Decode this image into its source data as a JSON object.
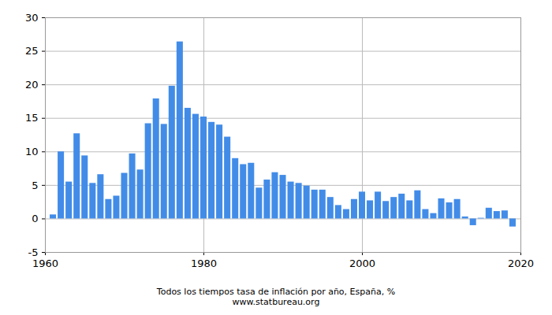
{
  "chart_data": {
    "type": "bar",
    "title": "Todos los tiempos tasa de inflación por año, España, %",
    "subtitle": "www.statbureau.org",
    "x": [
      1961,
      1962,
      1963,
      1964,
      1965,
      1966,
      1967,
      1968,
      1969,
      1970,
      1971,
      1972,
      1973,
      1974,
      1975,
      1976,
      1977,
      1978,
      1979,
      1980,
      1981,
      1982,
      1983,
      1984,
      1985,
      1986,
      1987,
      1988,
      1989,
      1990,
      1991,
      1992,
      1993,
      1994,
      1995,
      1996,
      1997,
      1998,
      1999,
      2000,
      2001,
      2002,
      2003,
      2004,
      2005,
      2006,
      2007,
      2008,
      2009,
      2010,
      2011,
      2012,
      2013,
      2014,
      2015,
      2016,
      2017,
      2018,
      2019
    ],
    "values": [
      0.6,
      10.0,
      5.5,
      12.7,
      9.4,
      5.3,
      6.6,
      2.9,
      3.4,
      6.8,
      9.7,
      7.3,
      14.2,
      17.9,
      14.1,
      19.8,
      26.4,
      16.5,
      15.6,
      15.2,
      14.4,
      14.0,
      12.2,
      9.0,
      8.1,
      8.3,
      4.6,
      5.8,
      6.9,
      6.5,
      5.5,
      5.3,
      4.9,
      4.3,
      4.3,
      3.2,
      2.0,
      1.4,
      2.9,
      4.0,
      2.7,
      4.0,
      2.6,
      3.2,
      3.7,
      2.7,
      4.2,
      1.4,
      0.8,
      3.0,
      2.4,
      2.9,
      0.3,
      -1.0,
      0.1,
      1.6,
      1.1,
      1.2,
      -1.2
    ],
    "color": "#428ce8",
    "xlim": [
      1960,
      2020
    ],
    "xticks": [
      1960,
      1980,
      2000,
      2020
    ],
    "ylim": [
      -5,
      30
    ],
    "yticks": [
      -5,
      0,
      5,
      10,
      15,
      20,
      25,
      30
    ],
    "grid": true
  }
}
